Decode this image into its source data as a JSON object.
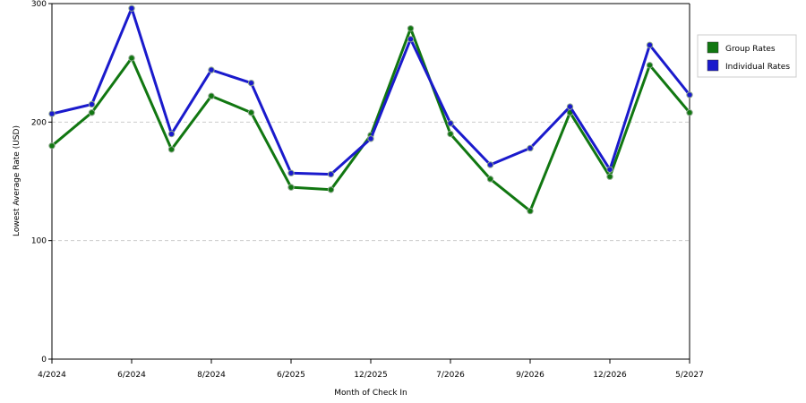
{
  "chart_data": {
    "type": "line",
    "title": "",
    "xlabel": "Month of Check In",
    "ylabel": "Lowest Average Rate (USD)",
    "ylim": [
      0,
      300
    ],
    "yticks": [
      0,
      100,
      200,
      300
    ],
    "grid": "horizontal dashed",
    "legend_position": "right",
    "x": [
      "4/2024",
      "5/2024",
      "6/2024",
      "7/2024",
      "8/2024",
      "9/2024",
      "6/2025",
      "7/2025",
      "12/2025",
      "1/2026",
      "7/2026",
      "8/2026",
      "9/2026",
      "10/2026",
      "12/2026",
      "1/2027",
      "5/2027"
    ],
    "x_tick_labels": [
      "4/2024",
      "6/2024",
      "8/2024",
      "6/2025",
      "12/2025",
      "7/2026",
      "9/2026",
      "12/2026",
      "5/2027"
    ],
    "series": [
      {
        "name": "Group Rates",
        "color": "#117711",
        "values": [
          180,
          208,
          254,
          177,
          222,
          208,
          145,
          143,
          189,
          279,
          190,
          152,
          125,
          208,
          154,
          248,
          208
        ]
      },
      {
        "name": "Individual Rates",
        "color": "#1a1acc",
        "values": [
          207,
          215,
          296,
          190,
          244,
          233,
          157,
          156,
          186,
          270,
          199,
          164,
          178,
          213,
          160,
          265,
          223
        ]
      }
    ]
  }
}
